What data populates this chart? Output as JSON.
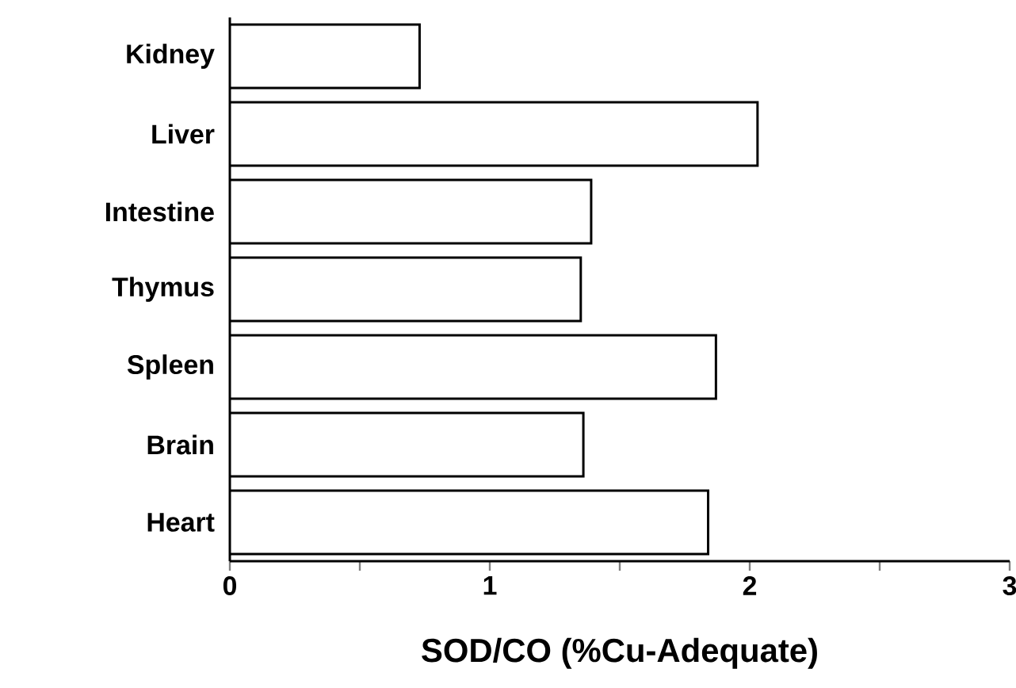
{
  "chart_data": {
    "type": "bar",
    "orientation": "horizontal",
    "xlabel": "SOD/CO  (%Cu-Adequate)",
    "categories": [
      "Kidney",
      "Liver",
      "Intestine",
      "Thymus",
      "Spleen",
      "Brain",
      "Heart"
    ],
    "values": [
      0.73,
      2.03,
      1.39,
      1.35,
      1.87,
      1.36,
      1.84
    ],
    "color": "#ffffff",
    "xlim": [
      0,
      3
    ],
    "xticks": [
      0,
      {
        "value": 0.5,
        "label": null
      },
      1,
      {
        "value": 1.5,
        "label": null
      },
      2,
      {
        "value": 2.5,
        "label": null
      },
      3
    ],
    "grid": false
  }
}
